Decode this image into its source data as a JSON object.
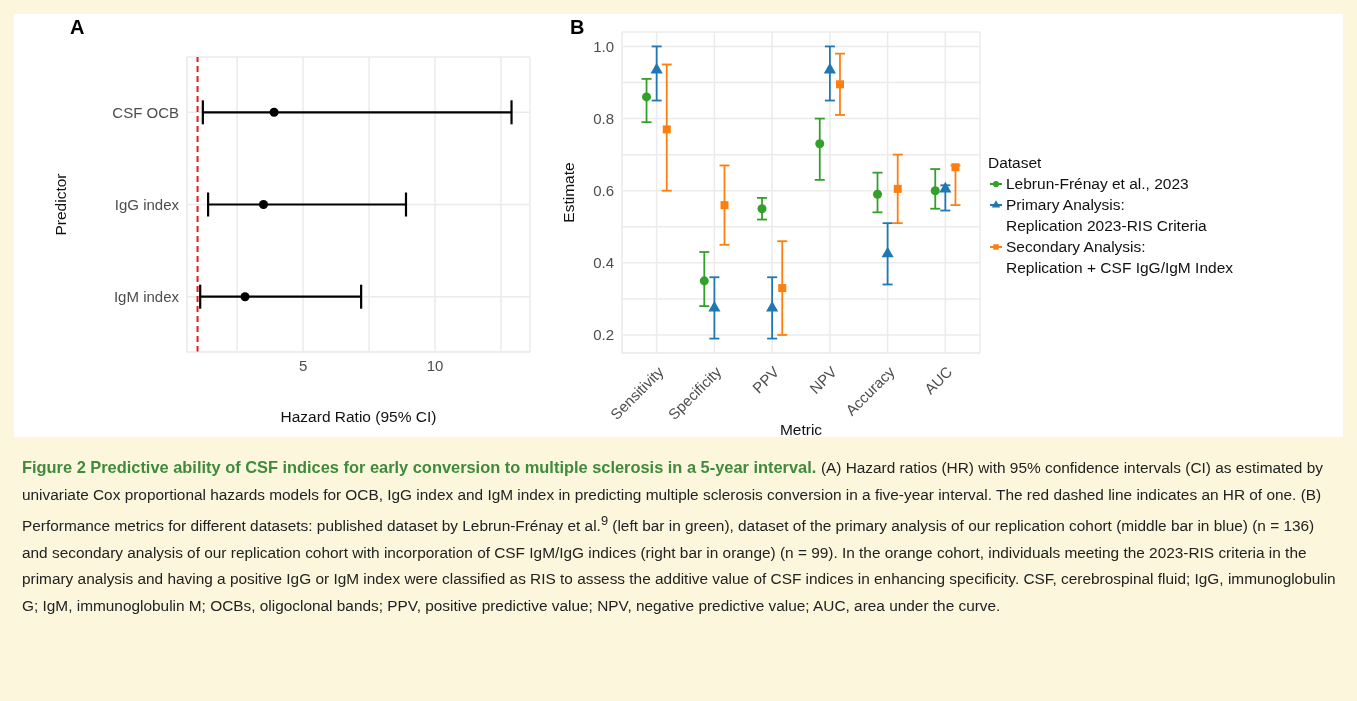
{
  "chart_data": [
    {
      "type": "scatter",
      "title": "A",
      "orientation": "horizontal",
      "categories": [
        "CSF OCB",
        "IgG index",
        "IgM index"
      ],
      "series": [
        {
          "color": "#000000",
          "marker": "circle",
          "values": [
            3.9,
            3.5,
            2.8
          ],
          "errors": [
            [
              1.2,
              12.9
            ],
            [
              1.4,
              8.9
            ],
            [
              1.1,
              7.2
            ]
          ]
        }
      ],
      "xlim": [
        0.6,
        13.6
      ],
      "xticks": [
        {
          "value": 2.5,
          "label": null
        },
        5,
        {
          "value": 7.5,
          "label": null
        },
        10,
        {
          "value": 12.5,
          "label": null
        }
      ],
      "xlabel": "Hazard Ratio (95% CI)",
      "ylabel": "Predictor",
      "ref_lines": [
        {
          "axis": "x",
          "value": 1,
          "color": "#e41a1c",
          "line_style": "dashed"
        }
      ],
      "grid": true
    },
    {
      "type": "scatter",
      "title": "B",
      "categories": [
        "Sensitivity",
        "Specificity",
        "PPV",
        "NPV",
        "Accuracy",
        "AUC"
      ],
      "series": [
        {
          "name": "Lebrun-Frénay et al., 2023",
          "color": "#33a02c",
          "marker": "circle",
          "values": [
            0.86,
            0.35,
            0.55,
            0.73,
            0.59,
            0.6
          ],
          "errors": [
            [
              0.79,
              0.91
            ],
            [
              0.28,
              0.43
            ],
            [
              0.52,
              0.58
            ],
            [
              0.63,
              0.8
            ],
            [
              0.54,
              0.65
            ],
            [
              0.55,
              0.66
            ]
          ]
        },
        {
          "name": "Primary Analysis:\nReplication 2023-RIS Criteria",
          "color": "#1f78b4",
          "marker": "triangle",
          "values": [
            0.935,
            0.275,
            0.275,
            0.935,
            0.425,
            0.605
          ],
          "errors": [
            [
              0.85,
              1.0
            ],
            [
              0.19,
              0.36
            ],
            [
              0.19,
              0.36
            ],
            [
              0.85,
              1.0
            ],
            [
              0.34,
              0.51
            ],
            [
              0.545,
              0.615
            ]
          ]
        },
        {
          "name": "Secondary Analysis:\nReplication + CSF IgG/IgM Index",
          "color": "#ff7f0e",
          "marker": "square",
          "values": [
            0.77,
            0.56,
            0.33,
            0.895,
            0.605,
            0.665
          ],
          "errors": [
            [
              0.6,
              0.95
            ],
            [
              0.45,
              0.67
            ],
            [
              0.2,
              0.46
            ],
            [
              0.81,
              0.98
            ],
            [
              0.51,
              0.7
            ],
            [
              0.56,
              0.67
            ]
          ]
        }
      ],
      "ylim": [
        0.15,
        1.04
      ],
      "yticks": [
        0.2,
        {
          "value": 0.3,
          "label": null
        },
        0.4,
        {
          "value": 0.5,
          "label": null
        },
        0.6,
        {
          "value": 0.7,
          "label": null
        },
        0.8,
        {
          "value": 0.9,
          "label": null
        },
        {
          "value": 1,
          "label": "1.0"
        }
      ],
      "xlabel": "Metric",
      "ylabel": "Estimate",
      "legend_title": "Dataset",
      "legend": "right",
      "grid": true
    },
    {
      "type": "other",
      "title": "Figure 2 Predictive ability of CSF indices for early conversion to multiple sclerosis in a 5-year interval.",
      "annotations": [
        "(A) Hazard ratios (HR) with 95% confidence intervals (CI) as estimated by univariate Cox proportional hazards models for OCB, IgG index and IgM index in predicting multiple sclerosis conversion in a five-year interval. The red dashed line indicates an HR of one. (B) Performance metrics for different datasets: published dataset by Lebrun-Frénay et al.$^{9}$ (left bar in green), dataset of the primary analysis of our replication cohort (middle bar in blue) (n = 136) and secondary analysis of our replication cohort with incorporation of CSF IgM/IgG indices (right bar in orange) (n = 99). In the orange cohort, individuals meeting the 2023-RIS criteria in the primary analysis and having a positive IgG or IgM index were classified as RIS to assess the additive value of CSF indices in enhancing specificity. CSF, cerebrospinal fluid; IgG, immunoglobulin G; IgM, immunoglobulin M; OCBs, oligoclonal bands; PPV, positive predictive value; NPV, negative predictive value; AUC, area under the curve."
      ]
    }
  ]
}
